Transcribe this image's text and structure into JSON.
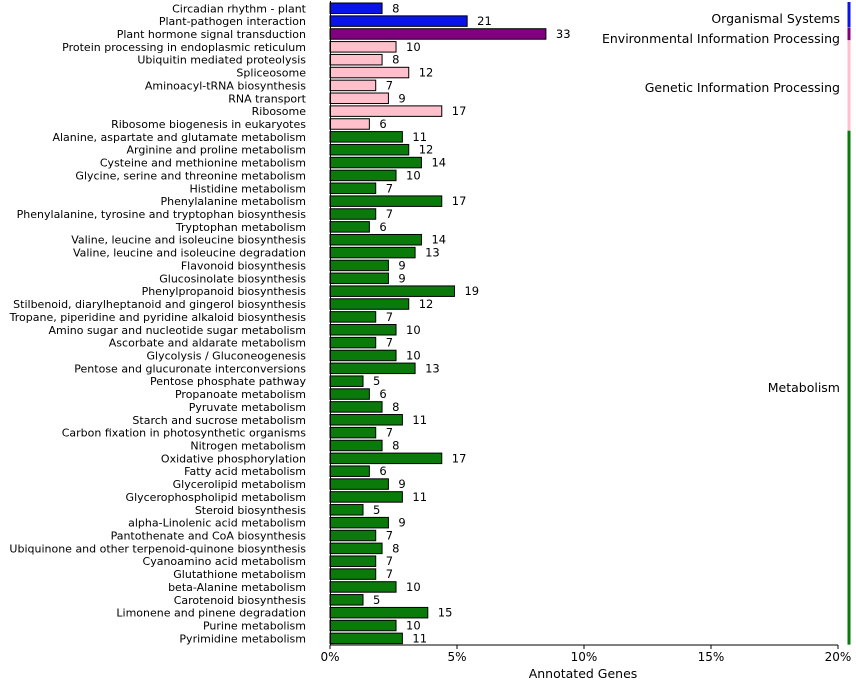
{
  "chart_data": {
    "type": "bar",
    "orientation": "horizontal",
    "xlabel": "Annotated Genes",
    "xlim": [
      0,
      20
    ],
    "x_ticks": [
      {
        "value": 0,
        "label": "0%"
      },
      {
        "value": 5,
        "label": "5%"
      },
      {
        "value": 10,
        "label": "10%"
      },
      {
        "value": 15,
        "label": "15%"
      },
      {
        "value": 20,
        "label": "20%"
      }
    ],
    "colors": {
      "Organismal Systems": "#0a14e6",
      "Environmental Information Processing": "#800080",
      "Genetic Information Processing": "#ffc0cb",
      "Metabolism": "#0a7a0a"
    },
    "groups": [
      {
        "name": "Organismal Systems",
        "label": "Organismal Systems"
      },
      {
        "name": "Environmental Information Processing",
        "label": "Environmental Information Processing"
      },
      {
        "name": "Genetic Information Processing",
        "label": "Genetic Information Processing"
      },
      {
        "name": "Metabolism",
        "label": "Metabolism"
      }
    ],
    "bars": [
      {
        "category": "Circadian rhythm - plant",
        "percent": 2.05,
        "count": "8",
        "group": "Organismal Systems"
      },
      {
        "category": "Plant-pathogen interaction",
        "percent": 5.4,
        "count": "21",
        "group": "Organismal Systems"
      },
      {
        "category": "Plant hormone signal transduction",
        "percent": 8.5,
        "count": "33",
        "group": "Environmental Information Processing"
      },
      {
        "category": "Protein processing in endoplasmic reticulum",
        "percent": 2.6,
        "count": "10",
        "group": "Genetic Information Processing"
      },
      {
        "category": "Ubiquitin mediated proteolysis",
        "percent": 2.05,
        "count": "8",
        "group": "Genetic Information Processing"
      },
      {
        "category": "Spliceosome",
        "percent": 3.1,
        "count": "12",
        "group": "Genetic Information Processing"
      },
      {
        "category": "Aminoacyl-tRNA biosynthesis",
        "percent": 1.8,
        "count": "7",
        "group": "Genetic Information Processing"
      },
      {
        "category": "RNA transport",
        "percent": 2.3,
        "count": "9",
        "group": "Genetic Information Processing"
      },
      {
        "category": "Ribosome",
        "percent": 4.4,
        "count": "17",
        "group": "Genetic Information Processing"
      },
      {
        "category": "Ribosome biogenesis in eukaryotes",
        "percent": 1.55,
        "count": "6",
        "group": "Genetic Information Processing"
      },
      {
        "category": "Alanine, aspartate and glutamate metabolism",
        "percent": 2.85,
        "count": "11",
        "group": "Metabolism"
      },
      {
        "category": "Arginine and proline metabolism",
        "percent": 3.1,
        "count": "12",
        "group": "Metabolism"
      },
      {
        "category": "Cysteine and methionine metabolism",
        "percent": 3.6,
        "count": "14",
        "group": "Metabolism"
      },
      {
        "category": "Glycine, serine and threonine metabolism",
        "percent": 2.6,
        "count": "10",
        "group": "Metabolism"
      },
      {
        "category": "Histidine metabolism",
        "percent": 1.8,
        "count": "7",
        "group": "Metabolism"
      },
      {
        "category": "Phenylalanine metabolism",
        "percent": 4.4,
        "count": "17",
        "group": "Metabolism"
      },
      {
        "category": "Phenylalanine, tyrosine and tryptophan biosynthesis",
        "percent": 1.8,
        "count": "7",
        "group": "Metabolism"
      },
      {
        "category": "Tryptophan metabolism",
        "percent": 1.55,
        "count": "6",
        "group": "Metabolism"
      },
      {
        "category": "Valine, leucine and isoleucine biosynthesis",
        "percent": 3.6,
        "count": "14",
        "group": "Metabolism"
      },
      {
        "category": "Valine, leucine and isoleucine degradation",
        "percent": 3.35,
        "count": "13",
        "group": "Metabolism"
      },
      {
        "category": "Flavonoid biosynthesis",
        "percent": 2.3,
        "count": "9",
        "group": "Metabolism"
      },
      {
        "category": "Glucosinolate biosynthesis",
        "percent": 2.3,
        "count": "9",
        "group": "Metabolism"
      },
      {
        "category": "Phenylpropanoid biosynthesis",
        "percent": 4.9,
        "count": "19",
        "group": "Metabolism"
      },
      {
        "category": "Stilbenoid, diarylheptanoid and gingerol biosynthesis",
        "percent": 3.1,
        "count": "12",
        "group": "Metabolism"
      },
      {
        "category": "Tropane, piperidine and pyridine alkaloid biosynthesis",
        "percent": 1.8,
        "count": "7",
        "group": "Metabolism"
      },
      {
        "category": "Amino sugar and nucleotide sugar metabolism",
        "percent": 2.6,
        "count": "10",
        "group": "Metabolism"
      },
      {
        "category": "Ascorbate and aldarate metabolism",
        "percent": 1.8,
        "count": "7",
        "group": "Metabolism"
      },
      {
        "category": "Glycolysis / Gluconeogenesis",
        "percent": 2.6,
        "count": "10",
        "group": "Metabolism"
      },
      {
        "category": "Pentose and glucuronate interconversions",
        "percent": 3.35,
        "count": "13",
        "group": "Metabolism"
      },
      {
        "category": "Pentose phosphate pathway",
        "percent": 1.3,
        "count": "5",
        "group": "Metabolism"
      },
      {
        "category": "Propanoate metabolism",
        "percent": 1.55,
        "count": "6",
        "group": "Metabolism"
      },
      {
        "category": "Pyruvate metabolism",
        "percent": 2.05,
        "count": "8",
        "group": "Metabolism"
      },
      {
        "category": "Starch and sucrose metabolism",
        "percent": 2.85,
        "count": "11",
        "group": "Metabolism"
      },
      {
        "category": "Carbon fixation in photosynthetic organisms",
        "percent": 1.8,
        "count": "7",
        "group": "Metabolism"
      },
      {
        "category": "Nitrogen metabolism",
        "percent": 2.05,
        "count": "8",
        "group": "Metabolism"
      },
      {
        "category": "Oxidative phosphorylation",
        "percent": 4.4,
        "count": "17",
        "group": "Metabolism"
      },
      {
        "category": "Fatty acid metabolism",
        "percent": 1.55,
        "count": "6",
        "group": "Metabolism"
      },
      {
        "category": "Glycerolipid metabolism",
        "percent": 2.3,
        "count": "9",
        "group": "Metabolism"
      },
      {
        "category": "Glycerophospholipid metabolism",
        "percent": 2.85,
        "count": "11",
        "group": "Metabolism"
      },
      {
        "category": "Steroid biosynthesis",
        "percent": 1.3,
        "count": "5",
        "group": "Metabolism"
      },
      {
        "category": "alpha-Linolenic acid metabolism",
        "percent": 2.3,
        "count": "9",
        "group": "Metabolism"
      },
      {
        "category": "Pantothenate and CoA biosynthesis",
        "percent": 1.8,
        "count": "7",
        "group": "Metabolism"
      },
      {
        "category": "Ubiquinone and other terpenoid-quinone biosynthesis",
        "percent": 2.05,
        "count": "8",
        "group": "Metabolism"
      },
      {
        "category": "Cyanoamino acid metabolism",
        "percent": 1.8,
        "count": "7",
        "group": "Metabolism"
      },
      {
        "category": "Glutathione metabolism",
        "percent": 1.8,
        "count": "7",
        "group": "Metabolism"
      },
      {
        "category": "beta-Alanine metabolism",
        "percent": 2.6,
        "count": "10",
        "group": "Metabolism"
      },
      {
        "category": "Carotenoid biosynthesis",
        "percent": 1.3,
        "count": "5",
        "group": "Metabolism"
      },
      {
        "category": "Limonene and pinene degradation",
        "percent": 3.85,
        "count": "15",
        "group": "Metabolism"
      },
      {
        "category": "Purine metabolism",
        "percent": 2.6,
        "count": "10",
        "group": "Metabolism"
      },
      {
        "category": "Pyrimidine metabolism",
        "percent": 2.85,
        "count": "11",
        "group": "Metabolism"
      }
    ]
  }
}
